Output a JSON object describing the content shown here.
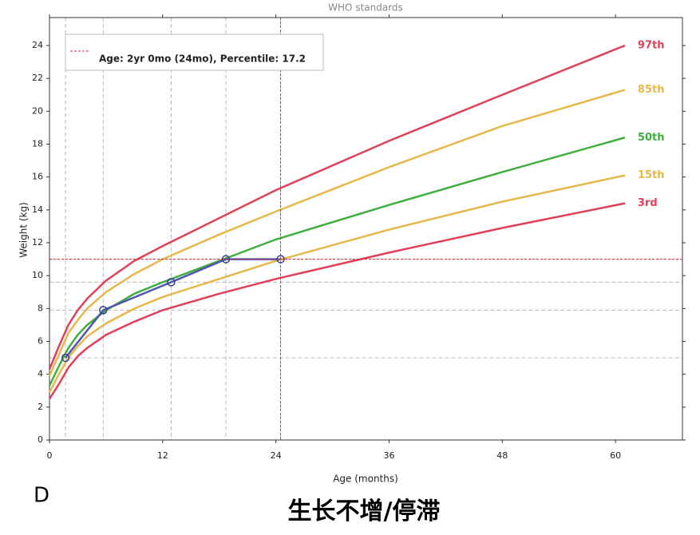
{
  "chart_data": {
    "type": "line",
    "title": "WHO standards",
    "xlabel": "Age (months)",
    "ylabel": "Weight (kg)",
    "annotation": "Age: 2yr 0mo (24mo), Percentile: 17.2",
    "panel_label": "D",
    "caption": "生长不增/停滞",
    "xlim": [
      0,
      67.1
    ],
    "ylim": [
      0,
      25.7
    ],
    "xticks": [
      0,
      12,
      24,
      36,
      48,
      60
    ],
    "yticks": [
      0,
      2,
      4,
      6,
      8,
      10,
      12,
      14,
      16,
      18,
      20,
      22,
      24
    ],
    "x": [
      0,
      1,
      2,
      3,
      4,
      6,
      9,
      12,
      18,
      24,
      36,
      48,
      61
    ],
    "series": [
      {
        "name": "97th",
        "color": "#e0405a",
        "values": [
          4.3,
          5.7,
          7.0,
          7.9,
          8.6,
          9.7,
          10.9,
          11.8,
          13.5,
          15.2,
          18.2,
          21.0,
          24.0
        ]
      },
      {
        "name": "85th",
        "color": "#e6b84c",
        "values": [
          3.9,
          5.2,
          6.5,
          7.3,
          8.0,
          9.0,
          10.1,
          11.0,
          12.5,
          13.9,
          16.6,
          19.1,
          21.3
        ]
      },
      {
        "name": "50th",
        "color": "#3fae3f",
        "values": [
          3.3,
          4.5,
          5.6,
          6.4,
          7.0,
          7.9,
          8.9,
          9.6,
          10.9,
          12.2,
          14.3,
          16.3,
          18.4
        ]
      },
      {
        "name": "15th",
        "color": "#e6b84c",
        "values": [
          2.9,
          4.0,
          5.0,
          5.7,
          6.3,
          7.1,
          8.0,
          8.7,
          9.8,
          10.9,
          12.8,
          14.5,
          16.1
        ]
      },
      {
        "name": "3rd",
        "color": "#e0405a",
        "values": [
          2.5,
          3.4,
          4.4,
          5.1,
          5.6,
          6.4,
          7.2,
          7.9,
          8.9,
          9.8,
          11.4,
          12.9,
          14.4
        ]
      }
    ],
    "measurements": {
      "color": "#5055b0",
      "x": [
        1.7,
        5.7,
        12.9,
        18.7,
        24.5
      ],
      "values": [
        5.0,
        7.9,
        9.6,
        11.0,
        11.0
      ]
    },
    "crosshair": {
      "color": "#d8303f",
      "x": 24.5,
      "y": 11.0
    }
  }
}
